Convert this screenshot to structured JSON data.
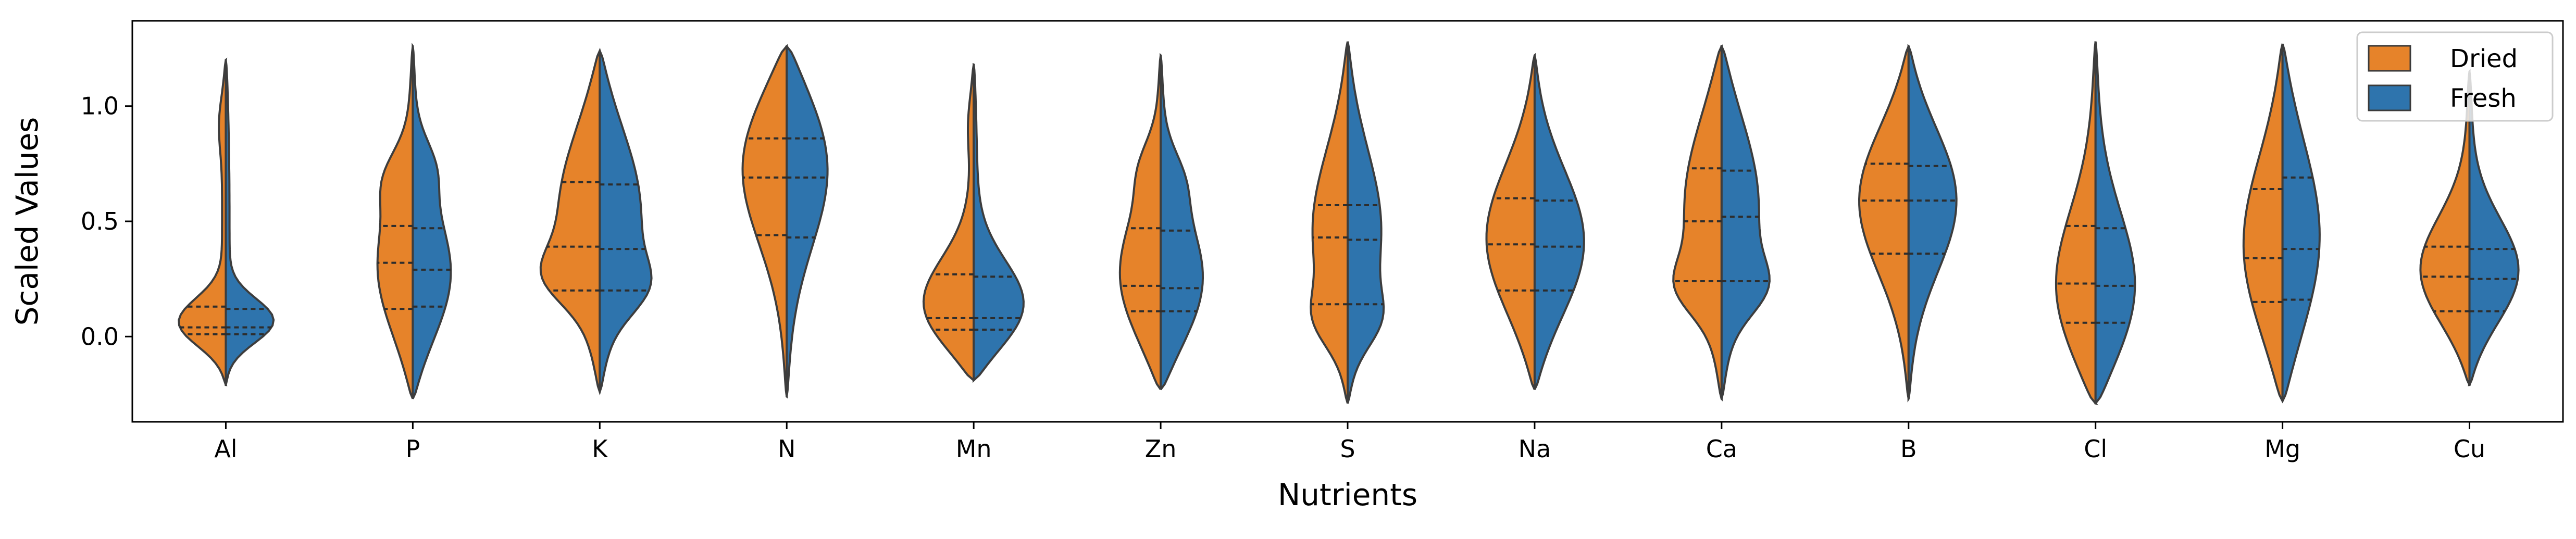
{
  "chart_data": {
    "type": "violin",
    "split": true,
    "xlabel": "Nutrients",
    "ylabel": "Scaled Values",
    "ylim": [
      -0.37,
      1.37
    ],
    "yticks": [
      0.0,
      0.5,
      1.0
    ],
    "ytick_labels": [
      "0.0",
      "0.5",
      "1.0"
    ],
    "categories": [
      "Al",
      "P",
      "K",
      "N",
      "Mn",
      "Zn",
      "S",
      "Na",
      "Ca",
      "B",
      "Cl",
      "Mg",
      "Cu"
    ],
    "legend_position": "top-right",
    "series": [
      {
        "name": "Dried",
        "color": "#e6832a",
        "violins": [
          {
            "min": -0.21,
            "max": 1.2,
            "q1": 0.01,
            "median": 0.04,
            "q3": 0.13,
            "peak": 0.04,
            "width": 0.85,
            "bumps": [
              {
                "at": 0.95,
                "w": 0.08
              }
            ]
          },
          {
            "min": -0.27,
            "max": 1.26,
            "q1": 0.12,
            "median": 0.32,
            "q3": 0.48,
            "peak": 0.25,
            "width": 0.45,
            "bumps": [
              {
                "at": 0.7,
                "w": 0.2
              }
            ]
          },
          {
            "min": -0.24,
            "max": 1.24,
            "q1": 0.2,
            "median": 0.39,
            "q3": 0.67,
            "peak": 0.55,
            "width": 0.5,
            "bumps": [
              {
                "at": 0.25,
                "w": 0.4
              }
            ]
          },
          {
            "min": -0.26,
            "max": 1.26,
            "q1": 0.44,
            "median": 0.69,
            "q3": 0.86,
            "peak": 0.82,
            "width": 0.6,
            "bumps": []
          },
          {
            "min": -0.19,
            "max": 1.18,
            "q1": 0.03,
            "median": 0.08,
            "q3": 0.27,
            "peak": 0.08,
            "width": 0.82,
            "bumps": [
              {
                "at": 0.95,
                "w": 0.06
              }
            ]
          },
          {
            "min": -0.23,
            "max": 1.22,
            "q1": 0.11,
            "median": 0.22,
            "q3": 0.47,
            "peak": 0.2,
            "width": 0.55,
            "bumps": [
              {
                "at": 0.75,
                "w": 0.15
              }
            ]
          },
          {
            "min": -0.29,
            "max": 1.28,
            "q1": 0.14,
            "median": 0.43,
            "q3": 0.57,
            "peak": 0.45,
            "width": 0.42,
            "bumps": [
              {
                "at": 0.05,
                "w": 0.3
              }
            ]
          },
          {
            "min": -0.23,
            "max": 1.22,
            "q1": 0.2,
            "median": 0.4,
            "q3": 0.6,
            "peak": 0.4,
            "width": 0.6,
            "bumps": []
          },
          {
            "min": -0.27,
            "max": 1.26,
            "q1": 0.24,
            "median": 0.5,
            "q3": 0.73,
            "peak": 0.6,
            "width": 0.45,
            "bumps": [
              {
                "at": 0.2,
                "w": 0.35
              }
            ]
          },
          {
            "min": -0.27,
            "max": 1.26,
            "q1": 0.36,
            "median": 0.59,
            "q3": 0.75,
            "peak": 0.62,
            "width": 0.62,
            "bumps": []
          },
          {
            "min": -0.29,
            "max": 1.28,
            "q1": 0.06,
            "median": 0.23,
            "q3": 0.48,
            "peak": 0.12,
            "width": 0.55,
            "bumps": []
          },
          {
            "min": -0.28,
            "max": 1.27,
            "q1": 0.15,
            "median": 0.34,
            "q3": 0.64,
            "peak": 0.35,
            "width": 0.48,
            "bumps": []
          },
          {
            "min": -0.21,
            "max": 1.15,
            "q1": 0.11,
            "median": 0.26,
            "q3": 0.39,
            "peak": 0.25,
            "width": 0.65,
            "bumps": []
          }
        ]
      },
      {
        "name": "Fresh",
        "color": "#2e74ad",
        "violins": [
          {
            "min": -0.21,
            "max": 1.2,
            "q1": 0.01,
            "median": 0.04,
            "q3": 0.12,
            "peak": 0.05,
            "width": 0.85,
            "bumps": []
          },
          {
            "min": -0.27,
            "max": 1.26,
            "q1": 0.13,
            "median": 0.29,
            "q3": 0.47,
            "peak": 0.22,
            "width": 0.5,
            "bumps": [
              {
                "at": 0.75,
                "w": 0.18
              }
            ]
          },
          {
            "min": -0.24,
            "max": 1.24,
            "q1": 0.2,
            "median": 0.38,
            "q3": 0.66,
            "peak": 0.55,
            "width": 0.5,
            "bumps": [
              {
                "at": 0.2,
                "w": 0.35
              }
            ]
          },
          {
            "min": -0.26,
            "max": 1.26,
            "q1": 0.43,
            "median": 0.69,
            "q3": 0.86,
            "peak": 0.82,
            "width": 0.55,
            "bumps": []
          },
          {
            "min": -0.19,
            "max": 1.18,
            "q1": 0.03,
            "median": 0.08,
            "q3": 0.26,
            "peak": 0.08,
            "width": 0.82,
            "bumps": []
          },
          {
            "min": -0.23,
            "max": 1.22,
            "q1": 0.11,
            "median": 0.21,
            "q3": 0.46,
            "peak": 0.18,
            "width": 0.58,
            "bumps": [
              {
                "at": 0.7,
                "w": 0.15
              }
            ]
          },
          {
            "min": -0.29,
            "max": 1.28,
            "q1": 0.14,
            "median": 0.42,
            "q3": 0.57,
            "peak": 0.45,
            "width": 0.4,
            "bumps": [
              {
                "at": 0.05,
                "w": 0.3
              }
            ]
          },
          {
            "min": -0.23,
            "max": 1.22,
            "q1": 0.2,
            "median": 0.39,
            "q3": 0.59,
            "peak": 0.38,
            "width": 0.62,
            "bumps": []
          },
          {
            "min": -0.27,
            "max": 1.26,
            "q1": 0.24,
            "median": 0.52,
            "q3": 0.72,
            "peak": 0.6,
            "width": 0.45,
            "bumps": [
              {
                "at": 0.2,
                "w": 0.35
              }
            ]
          },
          {
            "min": -0.27,
            "max": 1.26,
            "q1": 0.36,
            "median": 0.59,
            "q3": 0.74,
            "peak": 0.62,
            "width": 0.6,
            "bumps": []
          },
          {
            "min": -0.29,
            "max": 1.28,
            "q1": 0.06,
            "median": 0.22,
            "q3": 0.47,
            "peak": 0.12,
            "width": 0.55,
            "bumps": []
          },
          {
            "min": -0.28,
            "max": 1.27,
            "q1": 0.16,
            "median": 0.38,
            "q3": 0.69,
            "peak": 0.4,
            "width": 0.45,
            "bumps": []
          },
          {
            "min": -0.21,
            "max": 1.15,
            "q1": 0.11,
            "median": 0.25,
            "q3": 0.38,
            "peak": 0.25,
            "width": 0.65,
            "bumps": []
          }
        ]
      }
    ]
  }
}
